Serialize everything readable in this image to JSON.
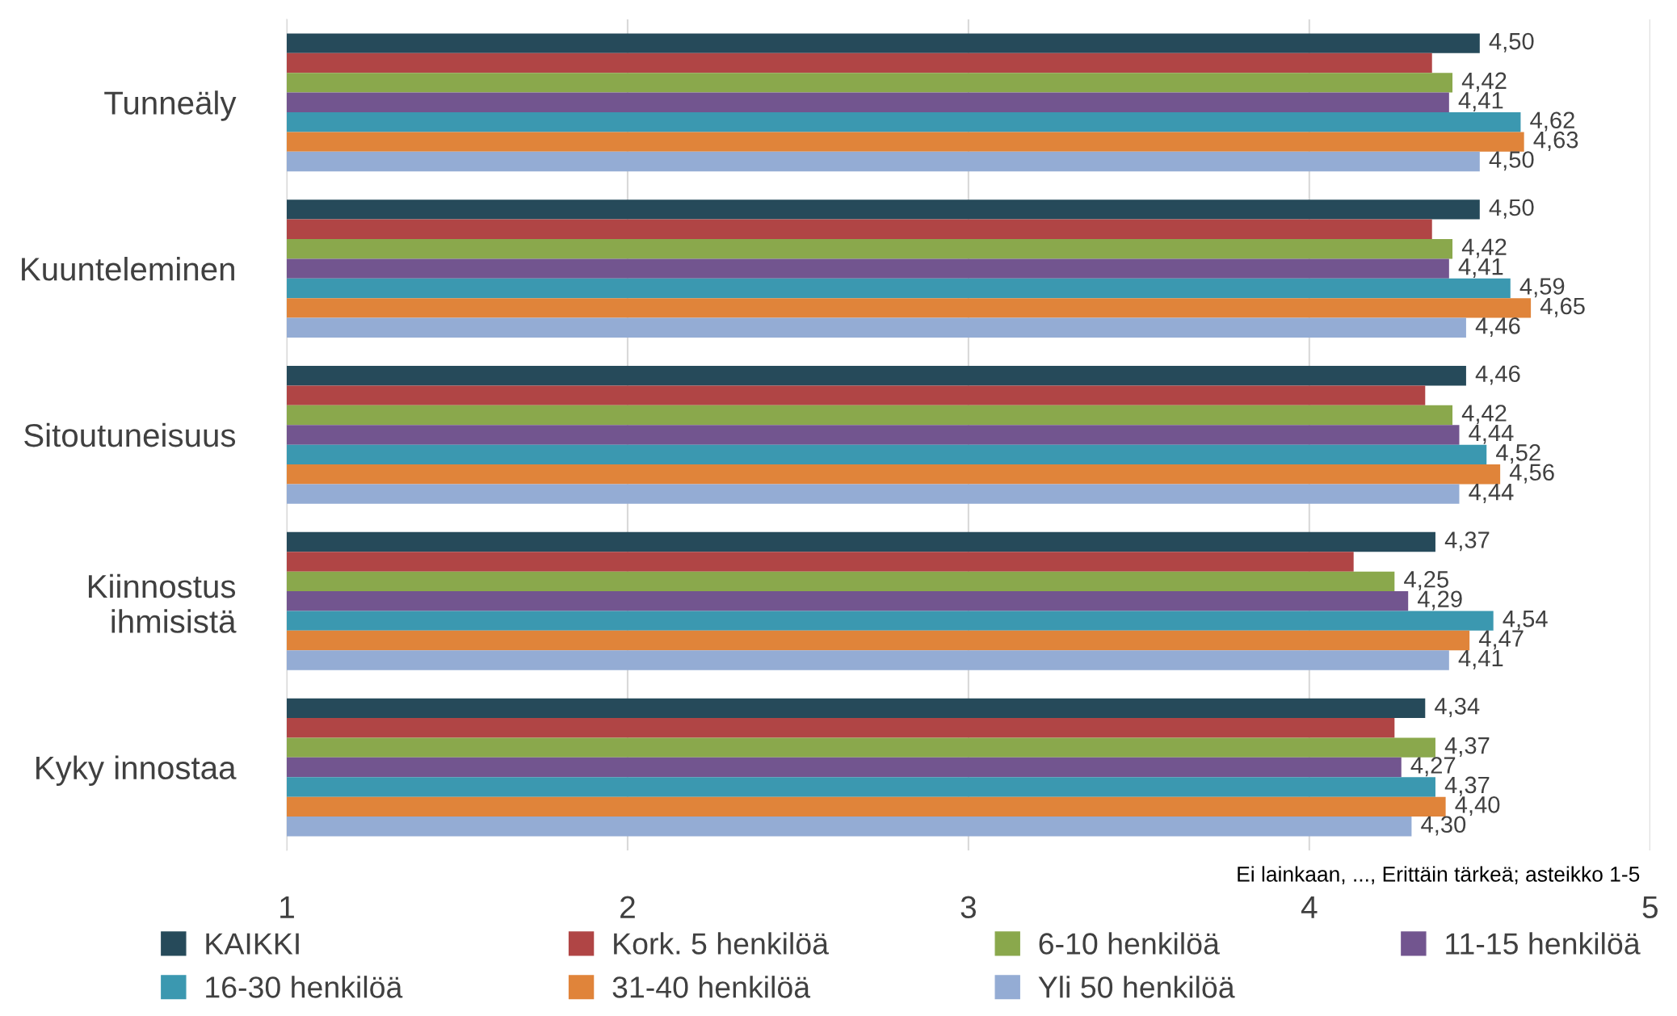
{
  "chart_data": {
    "type": "bar",
    "orientation": "horizontal",
    "categories": [
      "Tunneäly",
      "Kuunteleminen",
      "Sitoutuneisuus",
      "Kiinnostus\nihmisistä",
      "Kyky innostaa"
    ],
    "series": [
      {
        "name": "KAIKKI",
        "color": "#264a5a",
        "values": [
          4.5,
          4.5,
          4.46,
          4.37,
          4.34
        ],
        "value_labels": [
          "4,50",
          "4,50",
          "4,46",
          "4,37",
          "4,34"
        ]
      },
      {
        "name": "Kork. 5 henkilöä",
        "color": "#b04545",
        "values": [
          4.36,
          4.36,
          4.34,
          4.13,
          4.25
        ],
        "value_labels": [
          null,
          null,
          null,
          null,
          null
        ]
      },
      {
        "name": "6-10 henkilöä",
        "color": "#8aa84c",
        "values": [
          4.42,
          4.42,
          4.42,
          4.25,
          4.37
        ],
        "value_labels": [
          "4,42",
          "4,42",
          "4,42",
          "4,25",
          "4,37"
        ]
      },
      {
        "name": "11-15 henkilöä",
        "color": "#72558f",
        "values": [
          4.41,
          4.41,
          4.44,
          4.29,
          4.27
        ],
        "value_labels": [
          "4,41",
          "4,41",
          "4,44",
          "4,29",
          "4,27"
        ]
      },
      {
        "name": "16-30 henkilöä",
        "color": "#3b98b0",
        "values": [
          4.62,
          4.59,
          4.52,
          4.54,
          4.37
        ],
        "value_labels": [
          "4,62",
          "4,59",
          "4,52",
          "4,54",
          "4,37"
        ]
      },
      {
        "name": "31-40 henkilöä",
        "color": "#e0843a",
        "values": [
          4.63,
          4.65,
          4.56,
          4.47,
          4.4
        ],
        "value_labels": [
          "4,63",
          "4,65",
          "4,56",
          "4,47",
          "4,40"
        ]
      },
      {
        "name": "Yli 50 henkilöä",
        "color": "#94acd4",
        "values": [
          4.5,
          4.46,
          4.44,
          4.41,
          4.3
        ],
        "value_labels": [
          "4,50",
          "4,46",
          "4,44",
          "4,41",
          "4,30"
        ]
      }
    ],
    "xlim": [
      1,
      5
    ],
    "xticks": [
      1,
      2,
      3,
      4,
      5
    ],
    "grid": "x",
    "legend": "bottom",
    "annotations": [
      "Ei lainkaan, ..., Erittäin tärkeä; asteikko 1-5"
    ]
  }
}
